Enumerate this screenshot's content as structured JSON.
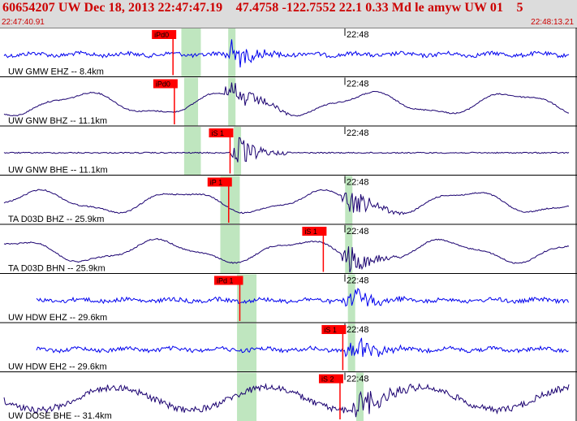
{
  "header": {
    "event_title": "60654207 UW Dec 18, 2013 22:47:47.19    47.4758 -122.7552 22.1 0.33 Md le amyw UW 01    5",
    "start_time": "22:47:40.91",
    "end_time": "22:48:13.21"
  },
  "colors": {
    "header_bg": "#dcdcdc",
    "header_text": "#cc0000",
    "trace_blue": "#0000ee",
    "trace_dark": "#1a0070",
    "pick_red": "#ff0000",
    "window_green": "#bfe6bf"
  },
  "window": {
    "start_seconds": 40.91,
    "end_seconds": 73.21
  },
  "marker_label": "22:48",
  "traces": [
    {
      "label": "UW GMW EHZ -- 8.4km",
      "pick": "iPd0",
      "color": "blue",
      "kind": "hf",
      "pick_second": 1.9,
      "green": [
        2.2,
        2.9
      ],
      "burst": 4.0
    },
    {
      "label": "UW GNW BHZ -- 11.1km",
      "pick": "iPd0",
      "color": "dark",
      "kind": "lf",
      "pick_second": 1.95,
      "green": [
        2.3,
        2.8
      ],
      "burst": 4.0
    },
    {
      "label": "UW GNW BHE -- 11.1km",
      "pick": "iS 1",
      "color": "dark",
      "kind": "flat",
      "pick_second": 3.95,
      "green": [
        2.3,
        2.9
      ],
      "burst": 4.2
    },
    {
      "label": "TA D03D BHZ -- 25.9km",
      "pick": "iP 1",
      "color": "dark",
      "kind": "lf",
      "pick_second": 3.9,
      "green": [
        3.6,
        4.3
      ],
      "burst": 8.2
    },
    {
      "label": "TA D03D BHN -- 25.9km",
      "pick": "iS 1",
      "color": "dark",
      "kind": "lf",
      "pick_second": 7.3,
      "green": [
        3.6,
        4.3
      ],
      "burst": 8.2
    },
    {
      "label": "UW HDW EHZ -- 29.6km",
      "pick": "iPd 1",
      "color": "blue",
      "kind": "hf",
      "pick_second": 4.3,
      "green": [
        4.2,
        4.9
      ],
      "burst": 8.3
    },
    {
      "label": "UW HDW EH2 -- 29.6km",
      "pick": "iS 1",
      "color": "blue",
      "kind": "hf",
      "pick_second": 8.0,
      "green": [
        4.2,
        4.9
      ],
      "burst": 8.3
    },
    {
      "label": "UW DOSE BHE -- 31.4km",
      "pick": "iS 2",
      "color": "dark",
      "kind": "lfnoisy",
      "pick_second": 7.9,
      "green": [
        4.2,
        4.9
      ],
      "burst": 8.6
    }
  ]
}
